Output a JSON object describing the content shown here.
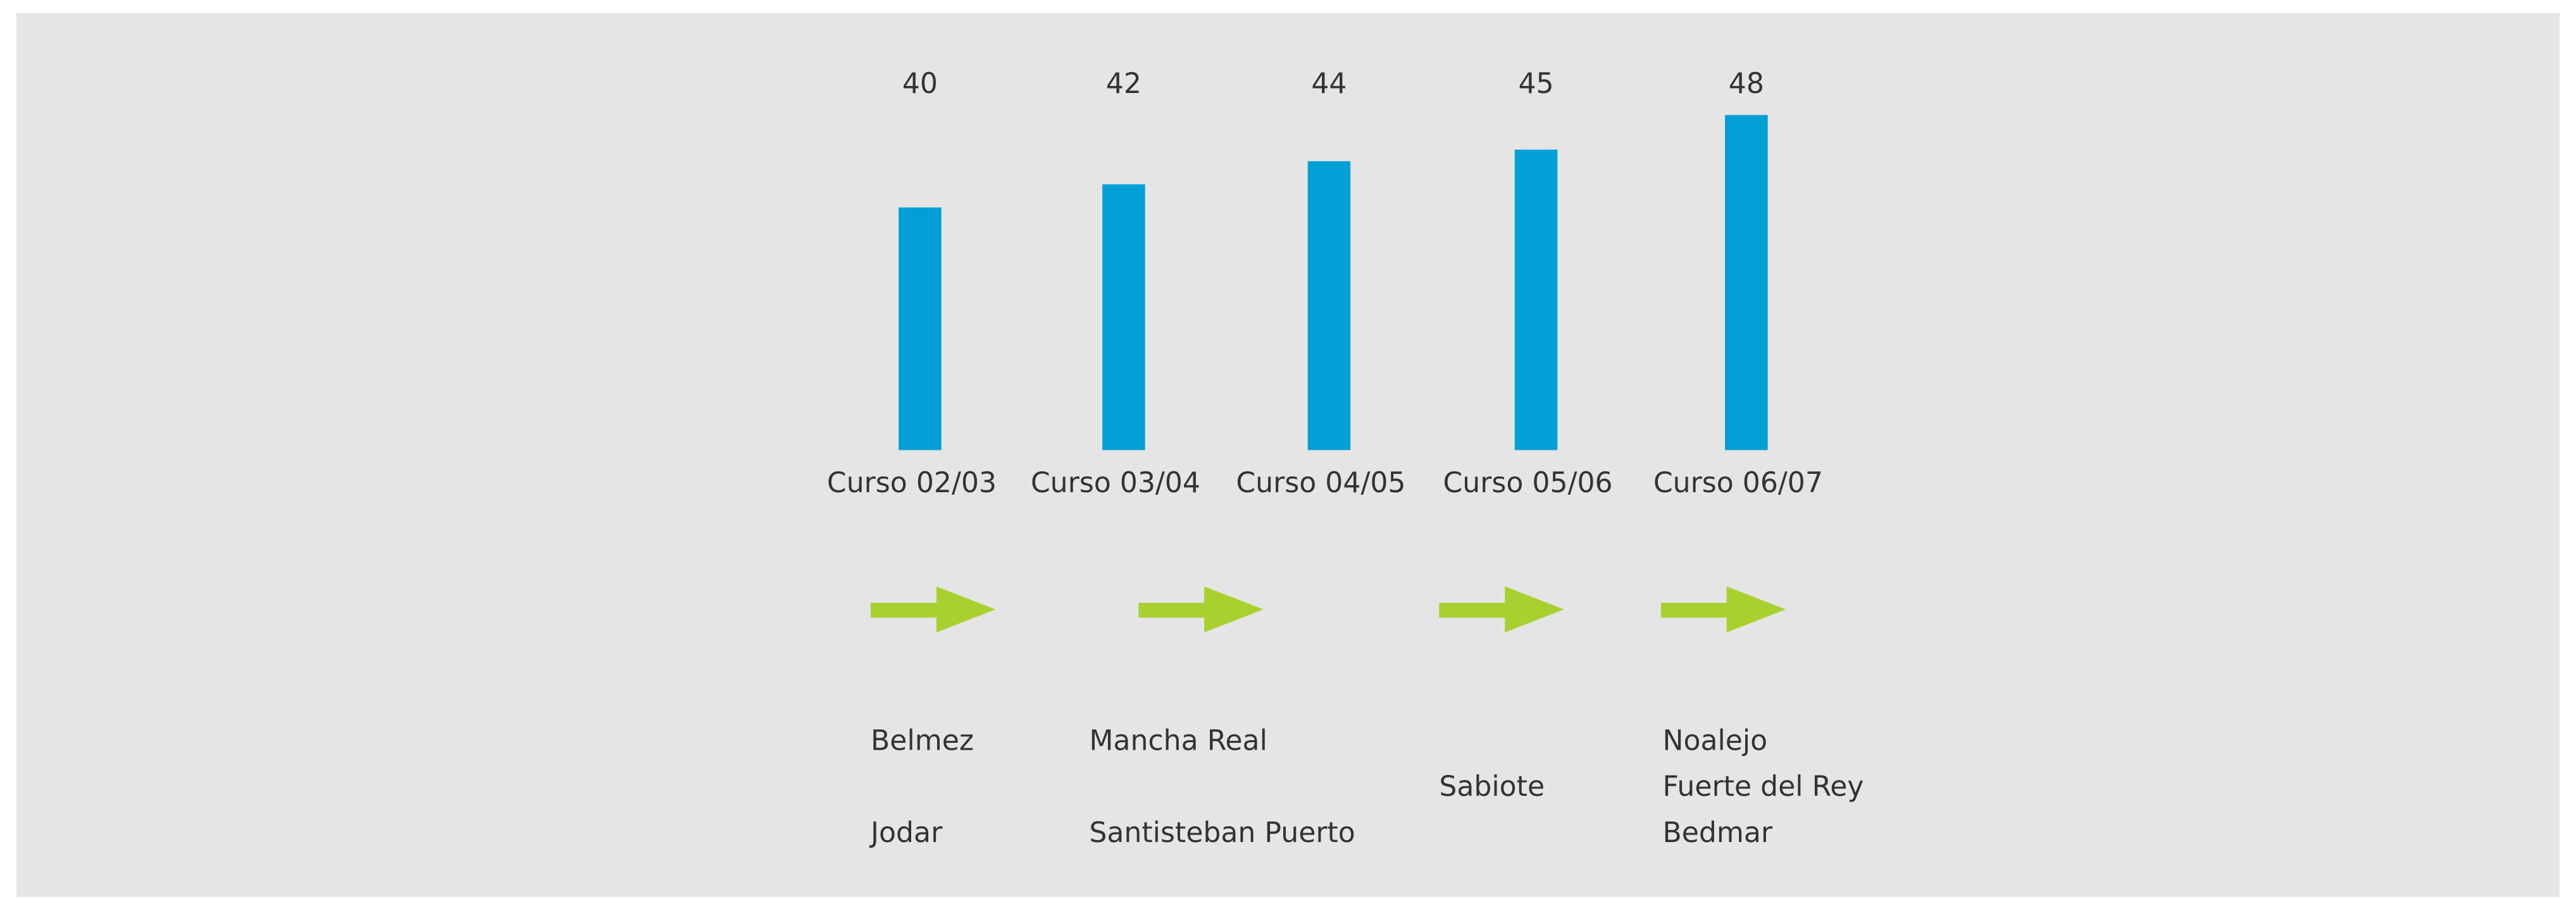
{
  "chart_data": {
    "type": "bar",
    "categories": [
      "Curso 02/03",
      "Curso 03/04",
      "Curso 04/05",
      "Curso 05/06",
      "Curso 06/07"
    ],
    "values": [
      40,
      42,
      44,
      45,
      48
    ],
    "color": "#009fd6",
    "ylim": [
      19,
      48
    ]
  },
  "towns": [
    {
      "names": [
        "Belmez",
        "Jodar"
      ]
    },
    {
      "names": [
        "Mancha Real",
        "Santisteban Puerto"
      ]
    },
    {
      "names": [
        "Sabiote"
      ]
    },
    {
      "names": [
        "Noalejo",
        "Fuerte del Rey",
        "Bedmar"
      ]
    }
  ]
}
